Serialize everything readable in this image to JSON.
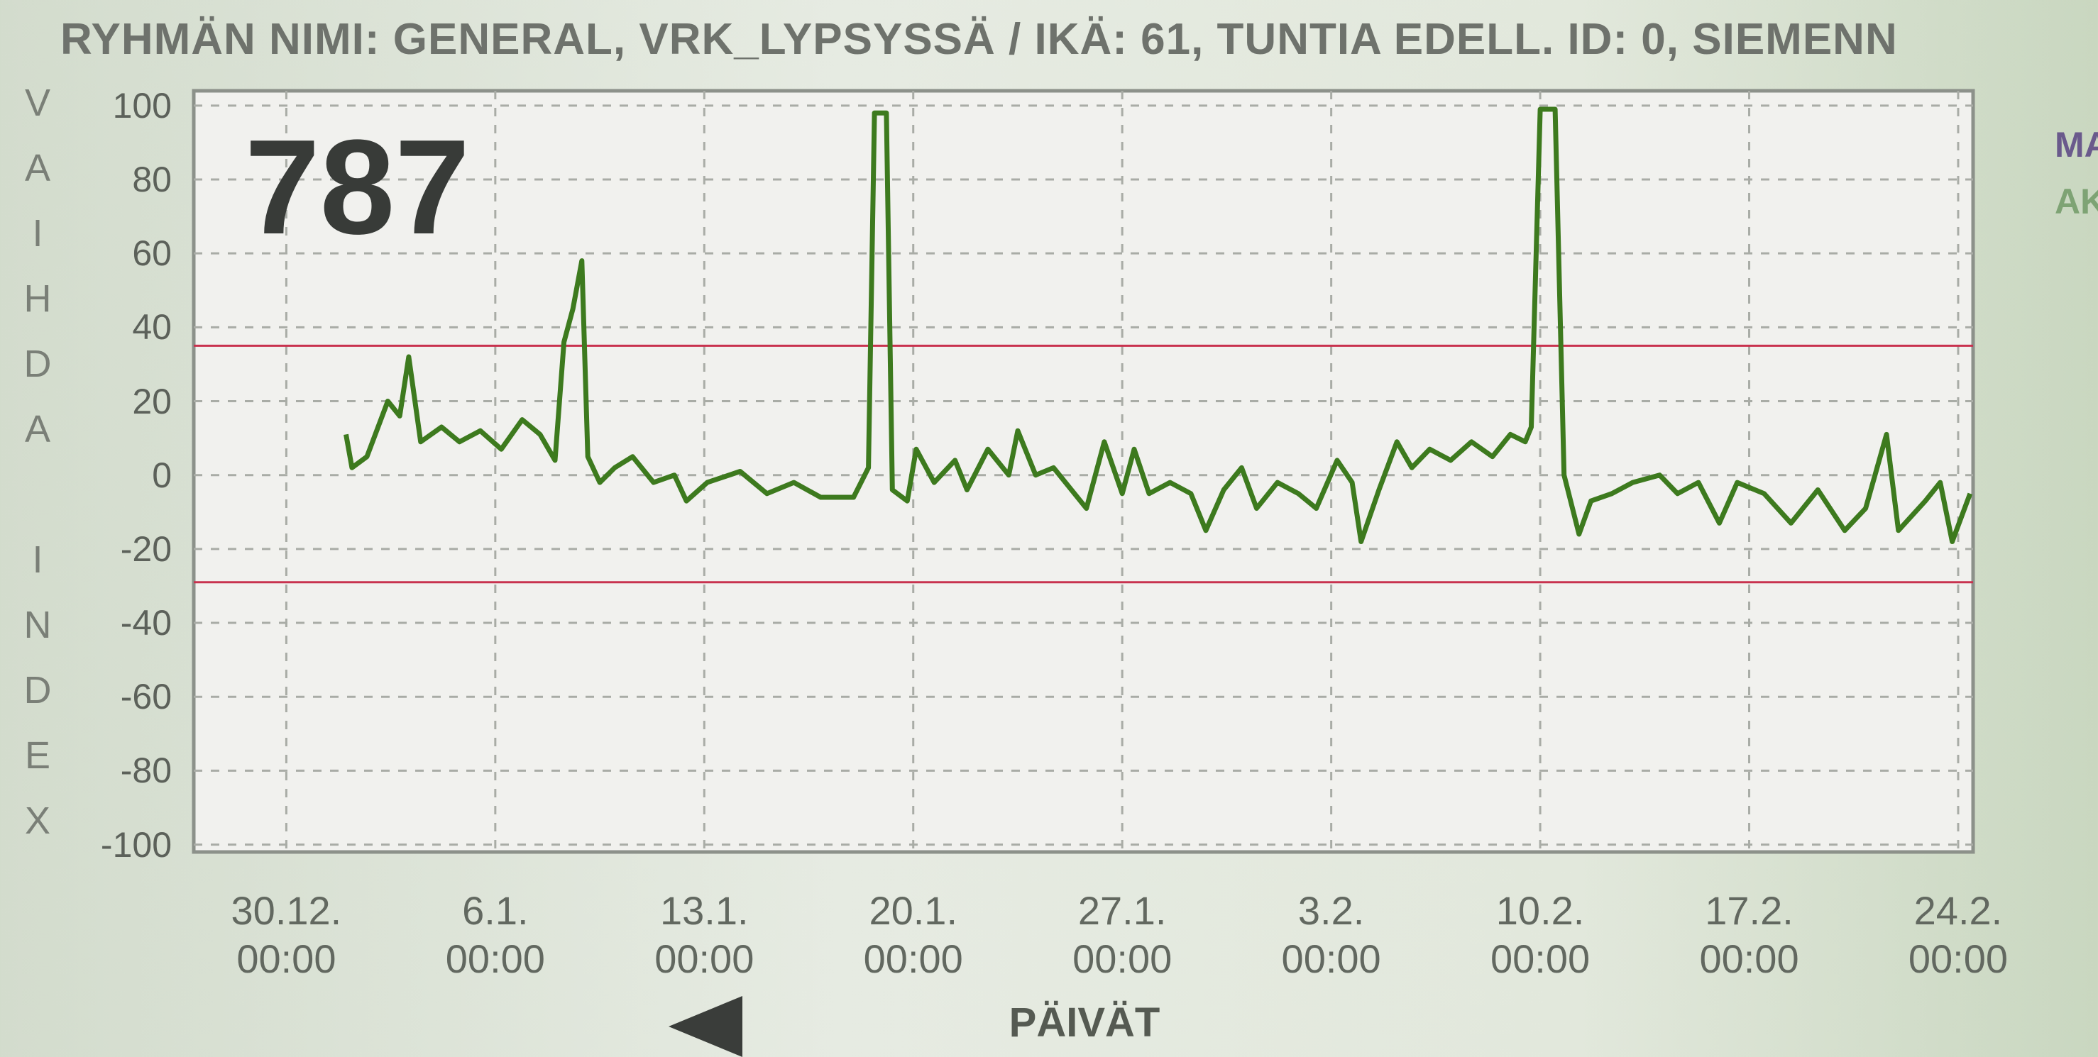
{
  "chart_data": {
    "type": "line",
    "title": "RYHMÄN NIMI: GENERAL, VRK_LYPSYSSÄ / IKÄ: 61, TUNTIA EDELL. ID: 0, SIEMENN",
    "y_label": "VAIHDA INDEX",
    "x_label": "PÄIVÄT",
    "annotation": "787",
    "side_labels": [
      "MA",
      "AK"
    ],
    "color": "#3d7a1e",
    "x": [
      2.0,
      2.2,
      2.7,
      3.4,
      3.8,
      4.1,
      4.5,
      5.2,
      5.8,
      6.5,
      7.2,
      7.9,
      8.5,
      9.0,
      9.3,
      9.6,
      9.9,
      10.1,
      10.5,
      11.0,
      11.6,
      12.3,
      13.0,
      13.4,
      14.1,
      15.2,
      16.1,
      17.0,
      17.9,
      19.0,
      19.5,
      19.7,
      20.1,
      20.3,
      20.8,
      21.1,
      21.7,
      22.4,
      22.8,
      23.5,
      24.2,
      24.5,
      25.1,
      25.7,
      26.4,
      26.8,
      27.4,
      28.0,
      28.4,
      28.9,
      29.6,
      30.3,
      30.8,
      31.4,
      32.0,
      32.5,
      33.2,
      33.9,
      34.5,
      35.2,
      35.7,
      36.0,
      36.6,
      37.2,
      37.7,
      38.3,
      39.0,
      39.7,
      40.4,
      41.0,
      41.5,
      41.7,
      42.0,
      42.5,
      42.8,
      43.3,
      43.7,
      44.4,
      45.1,
      46.0,
      46.6,
      47.3,
      48.0,
      48.6,
      49.5,
      50.4,
      51.3,
      52.2,
      52.9,
      53.6,
      54.0,
      54.9,
      55.4,
      55.8,
      56.4
    ],
    "values": [
      11,
      2,
      5,
      20,
      16,
      32,
      9,
      13,
      9,
      12,
      7,
      15,
      11,
      4,
      36,
      45,
      58,
      5,
      -2,
      2,
      5,
      -2,
      0,
      -7,
      -2,
      1,
      -5,
      -2,
      -6,
      -6,
      2,
      98,
      98,
      -4,
      -7,
      7,
      -2,
      4,
      -4,
      7,
      0,
      12,
      0,
      2,
      -5,
      -9,
      9,
      -5,
      7,
      -5,
      -2,
      -5,
      -15,
      -4,
      2,
      -9,
      -2,
      -5,
      -9,
      4,
      -2,
      -18,
      -4,
      9,
      2,
      7,
      4,
      9,
      5,
      11,
      9,
      13,
      99,
      99,
      0,
      -16,
      -7,
      -5,
      -2,
      0,
      -5,
      -2,
      -13,
      -2,
      -5,
      -13,
      -4,
      -15,
      -9,
      11,
      -15,
      -7,
      -2,
      -18,
      -5
    ],
    "xlim": [
      -3.1,
      56.5
    ],
    "ylim": [
      -102,
      104
    ],
    "xticks": [
      {
        "value": 0,
        "label": "30.12.\n00:00"
      },
      {
        "value": 7,
        "label": "6.1.\n00:00"
      },
      {
        "value": 14,
        "label": "13.1.\n00:00"
      },
      {
        "value": 21,
        "label": "20.1.\n00:00"
      },
      {
        "value": 28,
        "label": "27.1.\n00:00"
      },
      {
        "value": 35,
        "label": "3.2.\n00:00"
      },
      {
        "value": 42,
        "label": "10.2.\n00:00"
      },
      {
        "value": 49,
        "label": "17.2.\n00:00"
      },
      {
        "value": 56,
        "label": "24.2.\n00:00"
      }
    ],
    "yticks": [
      -100,
      -80,
      -60,
      -40,
      -20,
      0,
      20,
      40,
      60,
      80,
      100
    ],
    "grid": true,
    "reference_lines": {
      "values": [
        35,
        -29
      ],
      "color": "#c8324e"
    }
  }
}
